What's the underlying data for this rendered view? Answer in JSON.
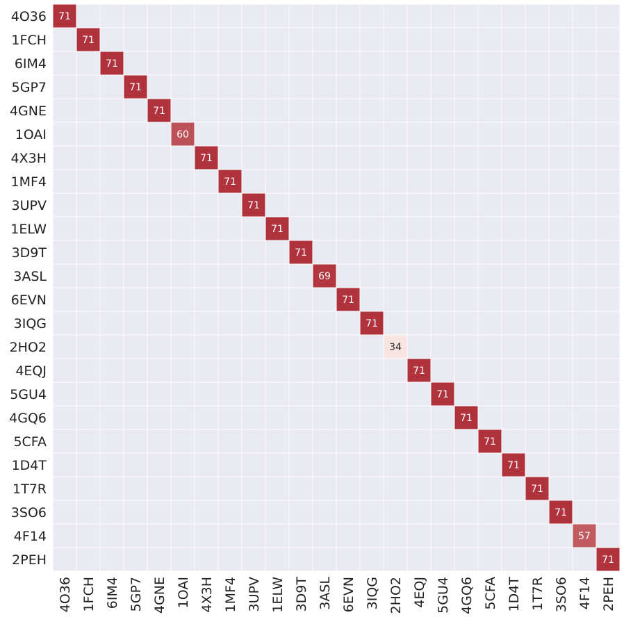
{
  "chart_data": {
    "type": "heatmap",
    "title": "",
    "xlabel": "",
    "ylabel": "",
    "rows": [
      "4O36",
      "1FCH",
      "6IM4",
      "5GP7",
      "4GNE",
      "1OAI",
      "4X3H",
      "1MF4",
      "3UPV",
      "1ELW",
      "3D9T",
      "3ASL",
      "6EVN",
      "3IQG",
      "2HO2",
      "4EQJ",
      "5GU4",
      "4GQ6",
      "5CFA",
      "1D4T",
      "1T7R",
      "3SO6",
      "4F14",
      "2PEH"
    ],
    "columns": [
      "4O36",
      "1FCH",
      "6IM4",
      "5GP7",
      "4GNE",
      "1OAI",
      "4X3H",
      "1MF4",
      "3UPV",
      "1ELW",
      "3D9T",
      "3ASL",
      "6EVN",
      "3IQG",
      "2HO2",
      "4EQJ",
      "5GU4",
      "4GQ6",
      "5CFA",
      "1D4T",
      "1T7R",
      "3SO6",
      "4F14",
      "2PEH"
    ],
    "cells": [
      {
        "row": 0,
        "col": 0,
        "value": 71
      },
      {
        "row": 1,
        "col": 1,
        "value": 71
      },
      {
        "row": 2,
        "col": 2,
        "value": 71
      },
      {
        "row": 3,
        "col": 3,
        "value": 71
      },
      {
        "row": 4,
        "col": 4,
        "value": 71
      },
      {
        "row": 5,
        "col": 5,
        "value": 60
      },
      {
        "row": 6,
        "col": 6,
        "value": 71
      },
      {
        "row": 7,
        "col": 7,
        "value": 71
      },
      {
        "row": 8,
        "col": 8,
        "value": 71
      },
      {
        "row": 9,
        "col": 9,
        "value": 71
      },
      {
        "row": 10,
        "col": 10,
        "value": 71
      },
      {
        "row": 11,
        "col": 11,
        "value": 69
      },
      {
        "row": 12,
        "col": 12,
        "value": 71
      },
      {
        "row": 13,
        "col": 13,
        "value": 71
      },
      {
        "row": 14,
        "col": 14,
        "value": 34
      },
      {
        "row": 15,
        "col": 15,
        "value": 71
      },
      {
        "row": 16,
        "col": 16,
        "value": 71
      },
      {
        "row": 17,
        "col": 17,
        "value": 71
      },
      {
        "row": 18,
        "col": 18,
        "value": 71
      },
      {
        "row": 19,
        "col": 19,
        "value": 71
      },
      {
        "row": 20,
        "col": 20,
        "value": 71
      },
      {
        "row": 21,
        "col": 21,
        "value": 71
      },
      {
        "row": 22,
        "col": 22,
        "value": 57
      },
      {
        "row": 23,
        "col": 23,
        "value": 71
      }
    ],
    "empty_cells_shown_as_background": true,
    "grid": true,
    "legend": "none",
    "colors": {
      "background": "#eaeaf2",
      "gridline": "#ffffff",
      "high": "#b0323c",
      "low": "#f8e4e1",
      "text_dark": "#262626",
      "text_light": "#ffffff"
    }
  }
}
